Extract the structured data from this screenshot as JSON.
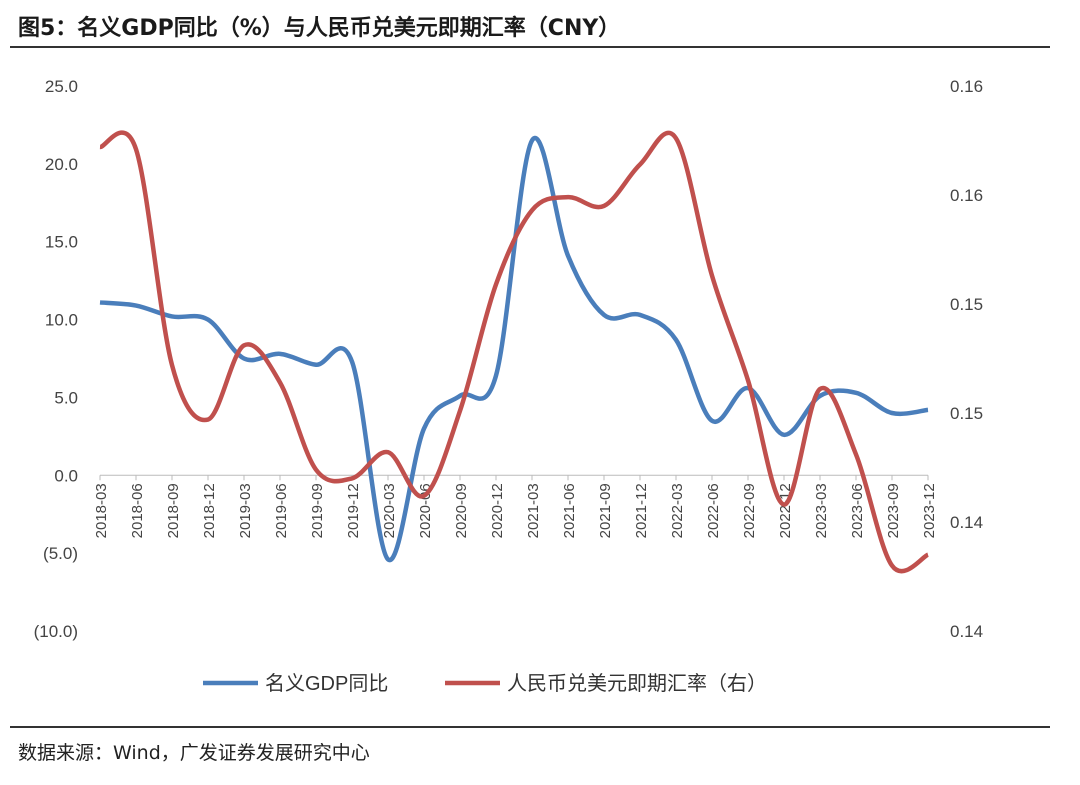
{
  "title": "图5：名义GDP同比（%）与人民币兑美元即期汇率（CNY）",
  "source": "数据来源：Wind，广发证券发展研究中心",
  "chart_data": {
    "type": "line",
    "title": "名义GDP同比（%）与人民币兑美元即期汇率（CNY）",
    "categories": [
      "2018-03",
      "2018-06",
      "2018-09",
      "2018-12",
      "2019-03",
      "2019-06",
      "2019-09",
      "2019-12",
      "2020-03",
      "2020-06",
      "2020-09",
      "2020-12",
      "2021-03",
      "2021-06",
      "2021-09",
      "2021-12",
      "2022-03",
      "2022-06",
      "2022-09",
      "2022-12",
      "2023-03",
      "2023-06",
      "2023-09",
      "2023-12"
    ],
    "left_axis": {
      "range": [
        -10,
        25
      ],
      "ticks": [
        25,
        20,
        15,
        10,
        5,
        0,
        -5,
        -10
      ],
      "tick_labels": [
        "25.0",
        "20.0",
        "15.0",
        "10.0",
        "5.0",
        "0.0",
        "(5.0)",
        "(10.0)"
      ]
    },
    "right_axis": {
      "range": [
        0.14,
        0.165
      ],
      "ticks": [
        0.165,
        0.16,
        0.155,
        0.15,
        0.145,
        0.14
      ],
      "tick_labels": [
        "0.16",
        "0.16",
        "0.15",
        "0.15",
        "0.14",
        "0.14"
      ]
    },
    "series": [
      {
        "name": "名义GDP同比",
        "axis": "left",
        "color": "#4a7ebb",
        "values": [
          11.1,
          10.9,
          10.2,
          10.0,
          7.5,
          7.8,
          7.1,
          7.3,
          -5.4,
          3.0,
          5.1,
          6.4,
          21.5,
          14.1,
          10.3,
          10.3,
          8.7,
          3.5,
          5.6,
          2.6,
          5.1,
          5.3,
          4.0,
          4.2
        ]
      },
      {
        "name": "人民币兑美元即期汇率（右）",
        "axis": "right",
        "color": "#c0504d",
        "values": [
          0.1622,
          0.1621,
          0.1522,
          0.1497,
          0.1531,
          0.1514,
          0.1474,
          0.147,
          0.1482,
          0.1462,
          0.1501,
          0.1559,
          0.1593,
          0.1599,
          0.1595,
          0.1614,
          0.1626,
          0.1563,
          0.1515,
          0.1458,
          0.1511,
          0.1481,
          0.143,
          0.1435
        ]
      }
    ],
    "legend": "bottom"
  }
}
